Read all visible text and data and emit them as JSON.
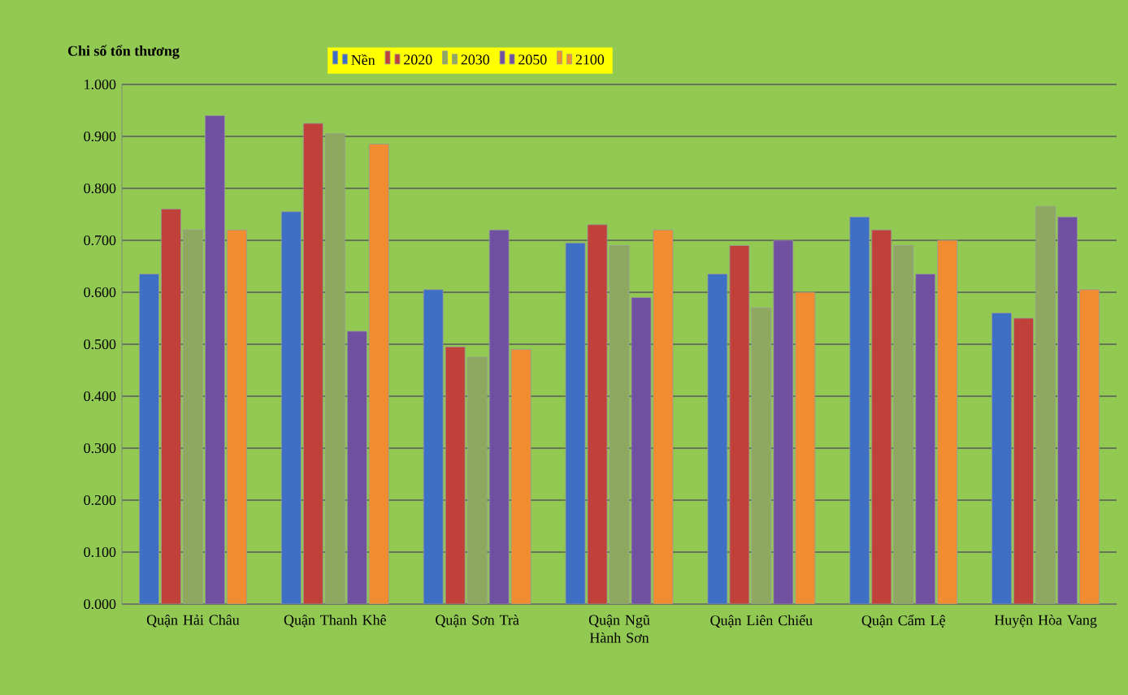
{
  "chart_data": {
    "type": "bar",
    "ylabel": "Chi số tổn thương",
    "categories": [
      "Quận Hải Châu",
      "Quận Thanh Khê",
      "Quận Sơn Trà",
      "Quận Ngũ Hành Sơn",
      "Quận Liên Chiểu",
      "Quận Cẩm Lệ",
      "Huyện Hòa Vang"
    ],
    "series": [
      {
        "name": "Nền",
        "color": "#3d6fc4",
        "values": [
          0.635,
          0.755,
          0.605,
          0.695,
          0.635,
          0.745,
          0.56
        ]
      },
      {
        "name": "2020",
        "color": "#c0403a",
        "values": [
          0.76,
          0.925,
          0.495,
          0.73,
          0.69,
          0.72,
          0.55
        ]
      },
      {
        "name": "2030",
        "color": "#8fa860",
        "values": [
          0.72,
          0.905,
          0.475,
          0.69,
          0.57,
          0.69,
          0.765
        ]
      },
      {
        "name": "2050",
        "color": "#7050a0",
        "values": [
          0.94,
          0.525,
          0.72,
          0.59,
          0.7,
          0.635,
          0.745
        ]
      },
      {
        "name": "2100",
        "color": "#f28c30",
        "values": [
          0.72,
          0.885,
          0.49,
          0.72,
          0.6,
          0.7,
          0.605
        ]
      }
    ],
    "ylim": [
      0,
      1
    ],
    "yticks": [
      {
        "value": 0,
        "label": "0.000"
      },
      {
        "value": 0.1,
        "label": "0.100"
      },
      {
        "value": 0.2,
        "label": "0.200"
      },
      {
        "value": 0.3,
        "label": "0.300"
      },
      {
        "value": 0.4,
        "label": "0.400"
      },
      {
        "value": 0.5,
        "label": "0.500"
      },
      {
        "value": 0.6,
        "label": "0.600"
      },
      {
        "value": 0.7,
        "label": "0.700"
      },
      {
        "value": 0.8,
        "label": "0.800"
      },
      {
        "value": 0.9,
        "label": "0.900"
      },
      {
        "value": 1,
        "label": "1.000"
      }
    ],
    "grid": "y",
    "legend": "top"
  }
}
